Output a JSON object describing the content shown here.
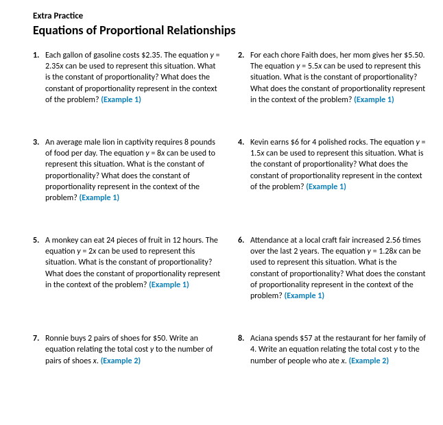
{
  "header": {
    "pretitle": "Extra Practice",
    "title": "Equations of Proportional Relationships"
  },
  "example_label": "(Example ",
  "problems": [
    {
      "num": "1.",
      "pre": "Each gallon of gasoline costs $2.35. The equation ",
      "eq_left": "y",
      "eq_mid": " = 2.35",
      "eq_right": "x",
      "post": " can be used to represent this situation. What is the constant of proportionality? What does the constant of proportionality represent in the context of the problem? ",
      "example": "1)"
    },
    {
      "num": "2.",
      "pre": "For each chore Faith does, her mom gives her $5.50. The equation ",
      "eq_left": "y",
      "eq_mid": " = 5.5",
      "eq_right": "x",
      "post": " can be used to represent this situation. What is the constant of proportionality? What does the constant of proportionality represent in the context of the problem? ",
      "example": "1)"
    },
    {
      "num": "3.",
      "pre": "An average male lion in captivity requires 8 pounds of food per day. The equation ",
      "eq_left": "y",
      "eq_mid": " = 8",
      "eq_right": "x",
      "post": " can be used to represent this situation. What is the constant of proportionality? What does the constant of proportionality represent in the context of the problem? ",
      "example": "1)"
    },
    {
      "num": "4.",
      "pre": "Kevin earns $6 for 4 polished rocks. The equation ",
      "eq_left": "y",
      "eq_mid": " = 1.5",
      "eq_right": "x",
      "post": " can be used to represent this situation. What is the constant of proportionality? What does the constant of proportionality represent in the context of the problem? ",
      "example": "1)"
    },
    {
      "num": "5.",
      "pre": "A monkey can eat 24 pieces of fruit in 12 hours. The equation ",
      "eq_left": "y",
      "eq_mid": " = 2",
      "eq_right": "x",
      "post": " can be used to represent this situation. What is the constant of proportionality? What does the constant of proportionality represent in the context of the problem? ",
      "example": "1)"
    },
    {
      "num": "6.",
      "pre": "Attendance at a local craft fair increased 2.56 times over the last 2 years. The equation ",
      "eq_left": "y",
      "eq_mid": " = 1.28",
      "eq_right": "x",
      "post": " can be used to represent this situation. What is the constant of proportionality? What does the constant of proportionality represent in the context of the problem? ",
      "example": "1)"
    },
    {
      "num": "7.",
      "pre": "Ronnie buys 2 pairs of shoes for $50. Write an equation relating the total cost ",
      "eq_left": "y",
      "eq_mid": " to the number of pairs of shoes ",
      "eq_right": "x",
      "post": ". ",
      "example": "2)"
    },
    {
      "num": "8.",
      "pre": "Aciana spends $57 at the restaurant for her family of 4. Write an equation relating the total cost ",
      "eq_left": "y",
      "eq_mid": " to the number of people who ate ",
      "eq_right": "x",
      "post": ". ",
      "example": "2)"
    }
  ]
}
